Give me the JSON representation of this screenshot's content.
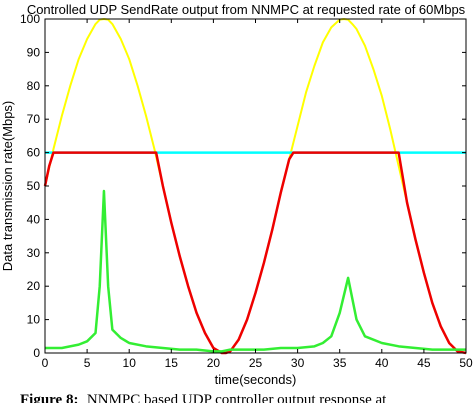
{
  "chart_data": {
    "type": "line",
    "title": "Controlled UDP SendRate output from NNMPC at requested rate of 60Mbps",
    "xlabel": "time(seconds)",
    "ylabel": "Data transmission rate(Mbps)",
    "xlim": [
      0,
      50
    ],
    "ylim": [
      0,
      100
    ],
    "xticks": [
      0,
      5,
      10,
      15,
      20,
      25,
      30,
      35,
      40,
      45,
      50
    ],
    "yticks": [
      0,
      10,
      20,
      30,
      40,
      50,
      60,
      70,
      80,
      90,
      100
    ],
    "grid": false,
    "legend": "none",
    "series": [
      {
        "color": "#ffff00",
        "x": [
          0,
          1,
          2,
          3,
          4,
          5,
          6,
          6.5,
          7,
          7.5,
          8,
          9,
          10,
          11,
          12,
          13,
          14,
          15,
          16,
          17,
          18,
          19,
          20,
          21,
          22,
          23,
          24,
          25,
          26,
          27,
          28,
          29,
          30,
          31,
          32,
          33,
          34,
          35,
          35.5,
          36,
          36.5,
          37,
          38,
          39,
          40,
          41,
          42,
          43,
          44,
          45,
          46,
          47,
          48,
          49,
          50
        ],
        "y": [
          50,
          61,
          71,
          80,
          88,
          94,
          98.5,
          99.8,
          100,
          99.8,
          98.5,
          94,
          88,
          80,
          71,
          61,
          50,
          39,
          29,
          20,
          12,
          6,
          1.5,
          0,
          0.5,
          4,
          10,
          18,
          27,
          37,
          48,
          58,
          68,
          78,
          86,
          93,
          97.5,
          99.8,
          100,
          99.8,
          98.5,
          97,
          92,
          85,
          77,
          67,
          56,
          45,
          34,
          24,
          15,
          8,
          3,
          0.5,
          0
        ]
      },
      {
        "color": "#00ffff",
        "x": [
          0,
          50
        ],
        "y": [
          60,
          60
        ]
      },
      {
        "color": "#ee0000",
        "x": [
          0,
          0.5,
          1,
          13.2,
          14,
          15,
          16,
          17,
          18,
          19,
          20,
          21,
          21.5,
          22,
          23,
          24,
          25,
          26,
          27,
          28,
          29,
          29.5,
          42,
          43,
          44,
          45,
          46,
          47,
          48,
          49,
          50
        ],
        "y": [
          50,
          56,
          60,
          60,
          50,
          39,
          29,
          20,
          12,
          6,
          1.5,
          0,
          0,
          0.5,
          4,
          10,
          18,
          27,
          37,
          48,
          58,
          60,
          60,
          45,
          34,
          24,
          15,
          8,
          3,
          0.5,
          0
        ]
      },
      {
        "color": "#33ee33",
        "x": [
          0,
          2,
          4,
          5,
          6,
          6.5,
          7,
          7.5,
          8,
          9,
          10,
          12,
          14,
          16,
          18,
          20,
          21,
          22,
          24,
          26,
          28,
          30,
          32,
          33,
          34,
          35,
          36,
          37,
          38,
          40,
          42,
          44,
          46,
          48,
          50
        ],
        "y": [
          1.5,
          1.5,
          2.5,
          3.5,
          6,
          20,
          48.5,
          20,
          7,
          4.5,
          3,
          2,
          1.5,
          1,
          1,
          0.5,
          0.5,
          1,
          1,
          1,
          1.5,
          1.5,
          2,
          3,
          5,
          12,
          22.5,
          10,
          5,
          3,
          2,
          1.5,
          1,
          1,
          1
        ]
      }
    ]
  },
  "caption": {
    "label": "Figure 8:",
    "text": "NNMPC based UDP controller output response at"
  }
}
